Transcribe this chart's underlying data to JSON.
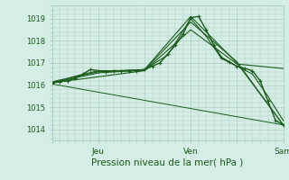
{
  "bg_color": "#d4ede5",
  "grid_color": "#aecec4",
  "line_color": "#1a5c1a",
  "marker_color": "#1a5c1a",
  "ylabel_ticks": [
    1014,
    1015,
    1016,
    1017,
    1018,
    1019
  ],
  "ylim": [
    1013.5,
    1019.6
  ],
  "xlabel": "Pression niveau de la mer( hPa )",
  "xtick_labels": [
    "",
    "Jeu",
    "",
    "Ven",
    "",
    "Sam"
  ],
  "xtick_positions": [
    0,
    24,
    48,
    72,
    96,
    120
  ],
  "series": [
    {
      "x": [
        0,
        4,
        8,
        12,
        16,
        20,
        24,
        28,
        32,
        36,
        40,
        44,
        48,
        52,
        56,
        60,
        64,
        68,
        72,
        76,
        80,
        84,
        88,
        92,
        96,
        100,
        104,
        108,
        112,
        116,
        120
      ],
      "y": [
        1016.1,
        1016.15,
        1016.2,
        1016.3,
        1016.5,
        1016.7,
        1016.65,
        1016.6,
        1016.65,
        1016.65,
        1016.65,
        1016.65,
        1016.7,
        1016.85,
        1017.0,
        1017.4,
        1017.8,
        1018.3,
        1019.05,
        1019.1,
        1018.5,
        1017.8,
        1017.25,
        1017.05,
        1016.85,
        1016.75,
        1016.65,
        1016.2,
        1015.3,
        1014.4,
        1014.2
      ],
      "marker": true,
      "lw": 1.0
    },
    {
      "x": [
        0,
        12,
        24,
        36,
        48,
        60,
        72,
        80,
        88,
        96,
        104,
        112,
        120
      ],
      "y": [
        1016.1,
        1016.4,
        1016.65,
        1016.65,
        1016.7,
        1017.35,
        1019.0,
        1018.2,
        1017.2,
        1016.85,
        1016.5,
        1015.5,
        1014.4
      ],
      "marker": false,
      "lw": 0.8
    },
    {
      "x": [
        0,
        24,
        48,
        72,
        96,
        120
      ],
      "y": [
        1016.15,
        1016.6,
        1016.7,
        1019.1,
        1017.0,
        1014.2
      ],
      "marker": false,
      "lw": 0.8
    },
    {
      "x": [
        0,
        24,
        48,
        72,
        96,
        120
      ],
      "y": [
        1016.1,
        1016.55,
        1016.68,
        1018.85,
        1017.05,
        1014.2
      ],
      "marker": false,
      "lw": 0.8
    },
    {
      "x": [
        0,
        48,
        72,
        96,
        120
      ],
      "y": [
        1016.1,
        1016.65,
        1018.5,
        1016.95,
        1016.75
      ],
      "marker": false,
      "lw": 0.8
    },
    {
      "x": [
        0,
        120
      ],
      "y": [
        1016.05,
        1014.2
      ],
      "marker": false,
      "lw": 0.7
    }
  ]
}
